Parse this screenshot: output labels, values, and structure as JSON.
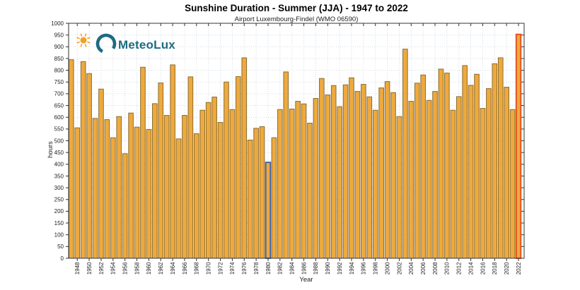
{
  "header": {
    "title": "Sunshine Duration - Summer (JJA) - 1947 to 2022",
    "subtitle": "Airport Luxembourg-Findel (WMO 06590)"
  },
  "logo": {
    "text": "MeteoLux",
    "teal": "#1e6b80",
    "sun_color": "#f0a028"
  },
  "chart_data": {
    "type": "bar",
    "title": "Sunshine Duration - Summer (JJA) - 1947 to 2022",
    "subtitle": "Airport Luxembourg-Findel (WMO 06590)",
    "xlabel": "Year",
    "ylabel": "hours",
    "ylim": [
      0,
      1000
    ],
    "grid": true,
    "x": [
      1947,
      1948,
      1949,
      1950,
      1951,
      1952,
      1953,
      1954,
      1955,
      1956,
      1957,
      1958,
      1959,
      1960,
      1961,
      1962,
      1963,
      1964,
      1965,
      1966,
      1967,
      1968,
      1969,
      1970,
      1971,
      1972,
      1973,
      1974,
      1975,
      1976,
      1977,
      1978,
      1979,
      1980,
      1981,
      1982,
      1983,
      1984,
      1985,
      1986,
      1987,
      1988,
      1989,
      1990,
      1991,
      1992,
      1993,
      1994,
      1995,
      1996,
      1997,
      1998,
      1999,
      2000,
      2001,
      2002,
      2003,
      2004,
      2005,
      2006,
      2007,
      2008,
      2009,
      2010,
      2011,
      2012,
      2013,
      2014,
      2015,
      2016,
      2017,
      2018,
      2019,
      2020,
      2021,
      2022
    ],
    "values": [
      845,
      555,
      837,
      786,
      595,
      720,
      590,
      513,
      603,
      445,
      618,
      558,
      813,
      548,
      658,
      746,
      608,
      823,
      508,
      608,
      772,
      530,
      630,
      663,
      686,
      578,
      750,
      633,
      773,
      853,
      503,
      553,
      560,
      408,
      513,
      633,
      793,
      635,
      668,
      657,
      575,
      680,
      765,
      695,
      735,
      645,
      738,
      768,
      710,
      740,
      687,
      630,
      725,
      752,
      705,
      603,
      890,
      668,
      745,
      780,
      672,
      710,
      805,
      788,
      630,
      688,
      820,
      736,
      783,
      638,
      722,
      828,
      853,
      728,
      633,
      953
    ],
    "yticks": [
      0,
      50,
      100,
      150,
      200,
      250,
      300,
      350,
      400,
      450,
      500,
      550,
      600,
      650,
      700,
      750,
      800,
      850,
      900,
      950,
      1000
    ],
    "xtick_labels": [
      "1948",
      "1950",
      "1952",
      "1954",
      "1956",
      "1958",
      "1960",
      "1962",
      "1964",
      "1966",
      "1968",
      "1970",
      "1972",
      "1974",
      "1976",
      "1978",
      "1980",
      "1982",
      "1984",
      "1986",
      "1988",
      "1990",
      "1992",
      "1994",
      "1996",
      "1998",
      "2000",
      "2002",
      "2004",
      "2006",
      "2008",
      "2010",
      "2012",
      "2014",
      "2016",
      "2018",
      "2020",
      "2022"
    ],
    "bar_fill": "#EEA93E",
    "bar_border": "#8A6D2F",
    "highlights": {
      "1980": {
        "edge_color": "#3A5FA8"
      },
      "2022": {
        "edge_color": "#E8481C"
      }
    },
    "grid_color": "#d3dbe2",
    "axis_color": "#333333",
    "legend": null
  }
}
